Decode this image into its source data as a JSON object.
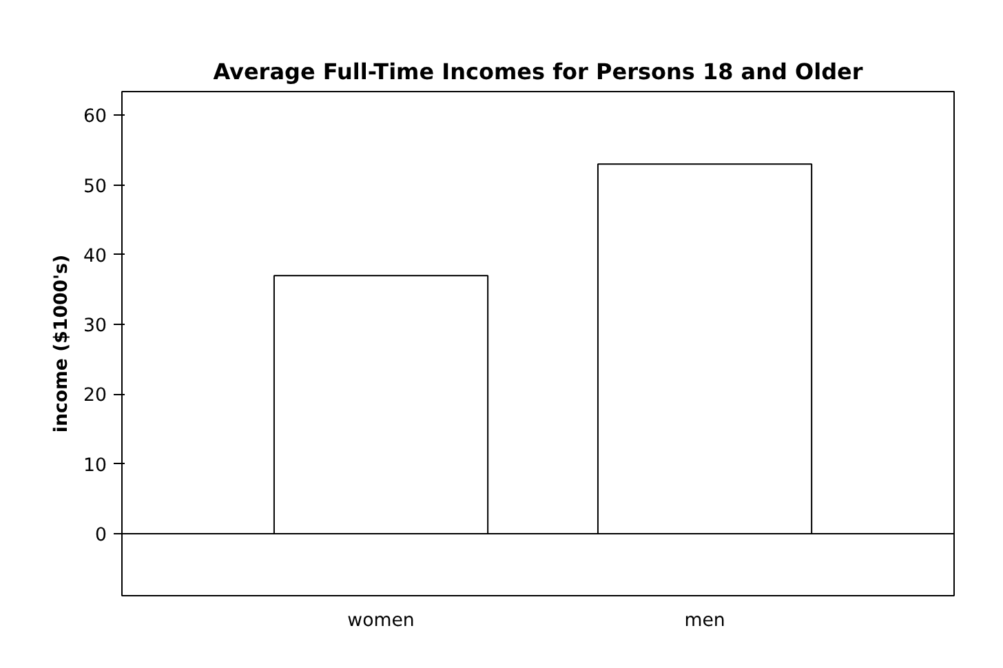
{
  "chart_data": {
    "type": "bar",
    "title": "Average Full-Time Incomes for Persons 18 and Older",
    "ylabel": "income ($1000's)",
    "categories": [
      "women",
      "men"
    ],
    "values": [
      37,
      53
    ],
    "color": "#ffffff",
    "ylim": [
      -8.9,
      63.4
    ],
    "yticks": [
      0,
      10,
      20,
      30,
      40,
      50,
      60
    ],
    "grid": false,
    "ref_lines": [
      {
        "axis": "y",
        "value": 0
      }
    ]
  }
}
